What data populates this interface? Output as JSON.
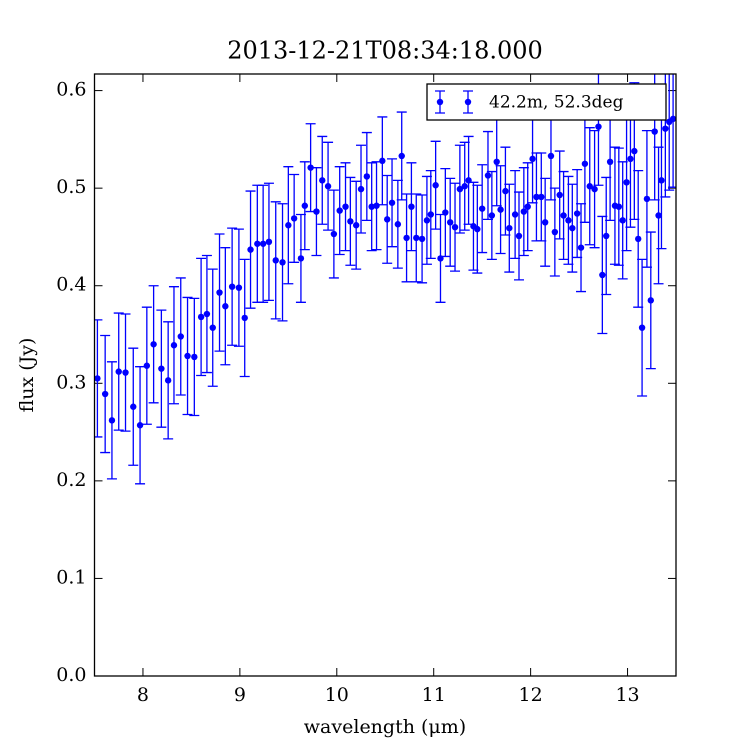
{
  "chart_data": {
    "type": "errorbar",
    "title": "2013-12-21T08:34:18.000",
    "xlabel": "wavelength (μm)",
    "ylabel": "flux (Jy)",
    "xlim": [
      7.5,
      13.5
    ],
    "ylim": [
      0,
      0.617
    ],
    "xticks": [
      8,
      9,
      10,
      11,
      12,
      13
    ],
    "yticks": [
      {
        "value": 0,
        "label": "0.0"
      },
      0.1,
      0.2,
      0.3,
      0.4,
      0.5,
      0.6
    ],
    "legend": "upper right",
    "series": [
      {
        "name": "42.2m, 52.3deg",
        "color": "#0000ff",
        "x": [
          7.53,
          7.61,
          7.68,
          7.75,
          7.82,
          7.9,
          7.97,
          8.04,
          8.11,
          8.19,
          8.26,
          8.32,
          8.39,
          8.46,
          8.53,
          8.6,
          8.66,
          8.72,
          8.79,
          8.85,
          8.92,
          8.99,
          9.05,
          9.11,
          9.18,
          9.24,
          9.3,
          9.37,
          9.44,
          9.5,
          9.56,
          9.63,
          9.67,
          9.73,
          9.79,
          9.85,
          9.91,
          9.97,
          10.03,
          10.09,
          10.14,
          10.2,
          10.25,
          10.31,
          10.36,
          10.41,
          10.47,
          10.52,
          10.57,
          10.63,
          10.67,
          10.72,
          10.77,
          10.82,
          10.88,
          10.93,
          10.97,
          11.02,
          11.07,
          11.12,
          11.17,
          11.22,
          11.27,
          11.32,
          11.36,
          11.41,
          11.45,
          11.5,
          11.56,
          11.6,
          11.65,
          11.69,
          11.74,
          11.78,
          11.84,
          11.88,
          11.93,
          11.97,
          12.02,
          12.06,
          12.11,
          12.15,
          12.21,
          12.25,
          12.3,
          12.34,
          12.39,
          12.43,
          12.48,
          12.52,
          12.56,
          12.61,
          12.66,
          12.7,
          12.74,
          12.78,
          12.82,
          12.87,
          12.91,
          12.95,
          12.99,
          13.03,
          13.07,
          13.11,
          13.15,
          13.2,
          13.24,
          13.28,
          13.32,
          13.35,
          13.39,
          13.43,
          13.47
        ],
        "values": [
          0.305,
          0.289,
          0.262,
          0.312,
          0.311,
          0.276,
          0.257,
          0.318,
          0.34,
          0.315,
          0.303,
          0.339,
          0.348,
          0.328,
          0.327,
          0.368,
          0.371,
          0.357,
          0.393,
          0.379,
          0.399,
          0.398,
          0.367,
          0.437,
          0.443,
          0.443,
          0.445,
          0.426,
          0.424,
          0.462,
          0.469,
          0.428,
          0.482,
          0.521,
          0.476,
          0.508,
          0.502,
          0.453,
          0.477,
          0.481,
          0.466,
          0.462,
          0.499,
          0.512,
          0.481,
          0.482,
          0.528,
          0.468,
          0.485,
          0.463,
          0.533,
          0.449,
          0.481,
          0.449,
          0.448,
          0.467,
          0.473,
          0.503,
          0.428,
          0.475,
          0.465,
          0.46,
          0.499,
          0.502,
          0.508,
          0.461,
          0.458,
          0.479,
          0.513,
          0.472,
          0.527,
          0.478,
          0.497,
          0.459,
          0.473,
          0.451,
          0.476,
          0.481,
          0.53,
          0.491,
          0.491,
          0.465,
          0.533,
          0.455,
          0.493,
          0.472,
          0.467,
          0.459,
          0.474,
          0.439,
          0.525,
          0.502,
          0.499,
          0.563,
          0.411,
          0.451,
          0.527,
          0.482,
          0.481,
          0.467,
          0.506,
          0.53,
          0.538,
          0.448,
          0.357,
          0.489,
          0.385,
          0.558,
          0.472,
          0.508,
          0.561,
          0.568,
          0.571
        ],
        "errors": [
          0.06,
          0.06,
          0.06,
          0.06,
          0.06,
          0.06,
          0.06,
          0.06,
          0.06,
          0.06,
          0.06,
          0.06,
          0.06,
          0.06,
          0.06,
          0.06,
          0.06,
          0.06,
          0.06,
          0.06,
          0.06,
          0.06,
          0.06,
          0.06,
          0.06,
          0.06,
          0.06,
          0.06,
          0.06,
          0.06,
          0.045,
          0.045,
          0.045,
          0.045,
          0.045,
          0.045,
          0.045,
          0.045,
          0.045,
          0.045,
          0.045,
          0.045,
          0.045,
          0.045,
          0.045,
          0.045,
          0.045,
          0.045,
          0.045,
          0.045,
          0.045,
          0.045,
          0.045,
          0.045,
          0.045,
          0.045,
          0.045,
          0.045,
          0.045,
          0.045,
          0.045,
          0.045,
          0.045,
          0.045,
          0.045,
          0.045,
          0.045,
          0.045,
          0.045,
          0.045,
          0.045,
          0.045,
          0.045,
          0.045,
          0.045,
          0.045,
          0.045,
          0.045,
          0.045,
          0.045,
          0.045,
          0.045,
          0.045,
          0.045,
          0.045,
          0.045,
          0.045,
          0.045,
          0.045,
          0.045,
          0.06,
          0.06,
          0.06,
          0.06,
          0.06,
          0.06,
          0.06,
          0.06,
          0.06,
          0.06,
          0.07,
          0.07,
          0.07,
          0.07,
          0.07,
          0.07,
          0.07,
          0.07,
          0.07,
          0.07,
          0.07,
          0.07,
          0.07
        ]
      }
    ]
  }
}
